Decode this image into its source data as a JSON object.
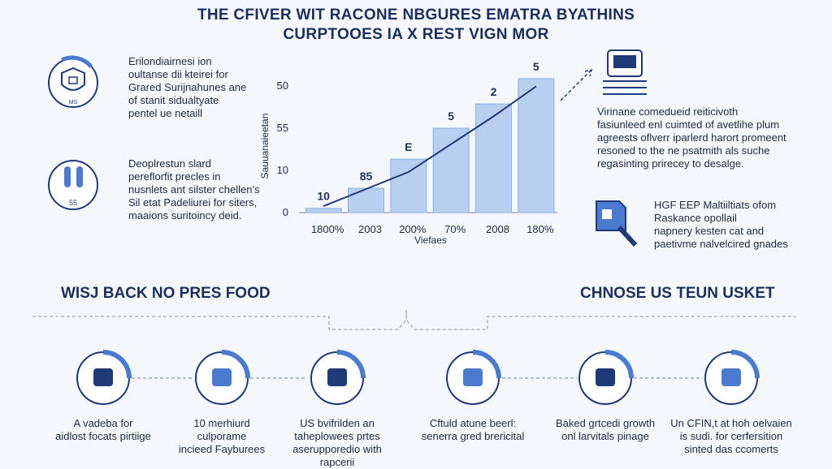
{
  "header": {
    "title": [
      "THE CFIVER WIT RACONE NBGURES EMATRA BYATHINS",
      "CURPTOOES IA X REST VIGN MOR"
    ]
  },
  "left_items": [
    {
      "icon_label": "MS",
      "text": [
        "Erilondiairnesi ion",
        "oultanse dii kteirei for",
        "Grared Surijnahunes ane",
        "of stanit sidualtyate",
        "pentel ue netaill"
      ]
    },
    {
      "icon_label": "55",
      "text": [
        "Deoplrestun slard",
        "pereflorfit precles in",
        "nusnlets ant silster chellen's",
        "Sil etat Padeliurei for siters,",
        "maaions suritoincy deid."
      ]
    }
  ],
  "right_items": [
    {
      "text": [
        "Virinane comedueid reiticivoth",
        "fasiunleed enl cuimted of avetlihe plum",
        "agreests oflverr iparlerd harort promeent",
        "resoned to the ne psatmith als suche",
        "regasinting prirecey to desalge."
      ]
    },
    {
      "text": [
        "HGF EEP Maltiiltiats ofom",
        "Raskance opollail",
        "napnery kesten cat and",
        "paetivme nalvelcired gnades"
      ]
    }
  ],
  "chart_data": {
    "type": "bar",
    "categories": [
      "1800%",
      "2003",
      "200%",
      "70%",
      "2008",
      "180%"
    ],
    "values": [
      0.1,
      0.57,
      1.25,
      1.97,
      2.54,
      3.13
    ],
    "color": "#b9cff0",
    "trend": [
      0.15,
      0.55,
      0.95,
      1.6,
      2.25,
      2.95
    ],
    "trend_color": "#1f3a78",
    "annotations": [
      "10",
      "85",
      "E",
      "5",
      "2",
      "5"
    ],
    "xlabel": "Viefaes",
    "ylabel": "Sauuanaieetan",
    "y_labels": [
      "0",
      "10",
      "55",
      "50"
    ],
    "ylim": [
      0,
      3.3
    ]
  },
  "sections": [
    "WISJ BACK NO PRES FOOD",
    "CHNOSE US TEUN USKET"
  ],
  "steps": [
    [
      "A vadeba for",
      "aidlost focats pirtiige"
    ],
    [
      "10 merhiurd",
      "culporame",
      "incieed Fayburees"
    ],
    [
      "US bvifrilden an",
      "taheplowees prtes",
      "aserupporedio with",
      "rapcerii"
    ],
    [
      "Cftuld atune beerl:",
      "senerra gred brericital"
    ],
    [
      "Baked grtcedi growth",
      "onl larvitals pinage"
    ],
    [
      "Un CFIN,t at hoh oelvaien",
      "is sudi. for cerfersition",
      "sinted das ccomerts"
    ]
  ]
}
